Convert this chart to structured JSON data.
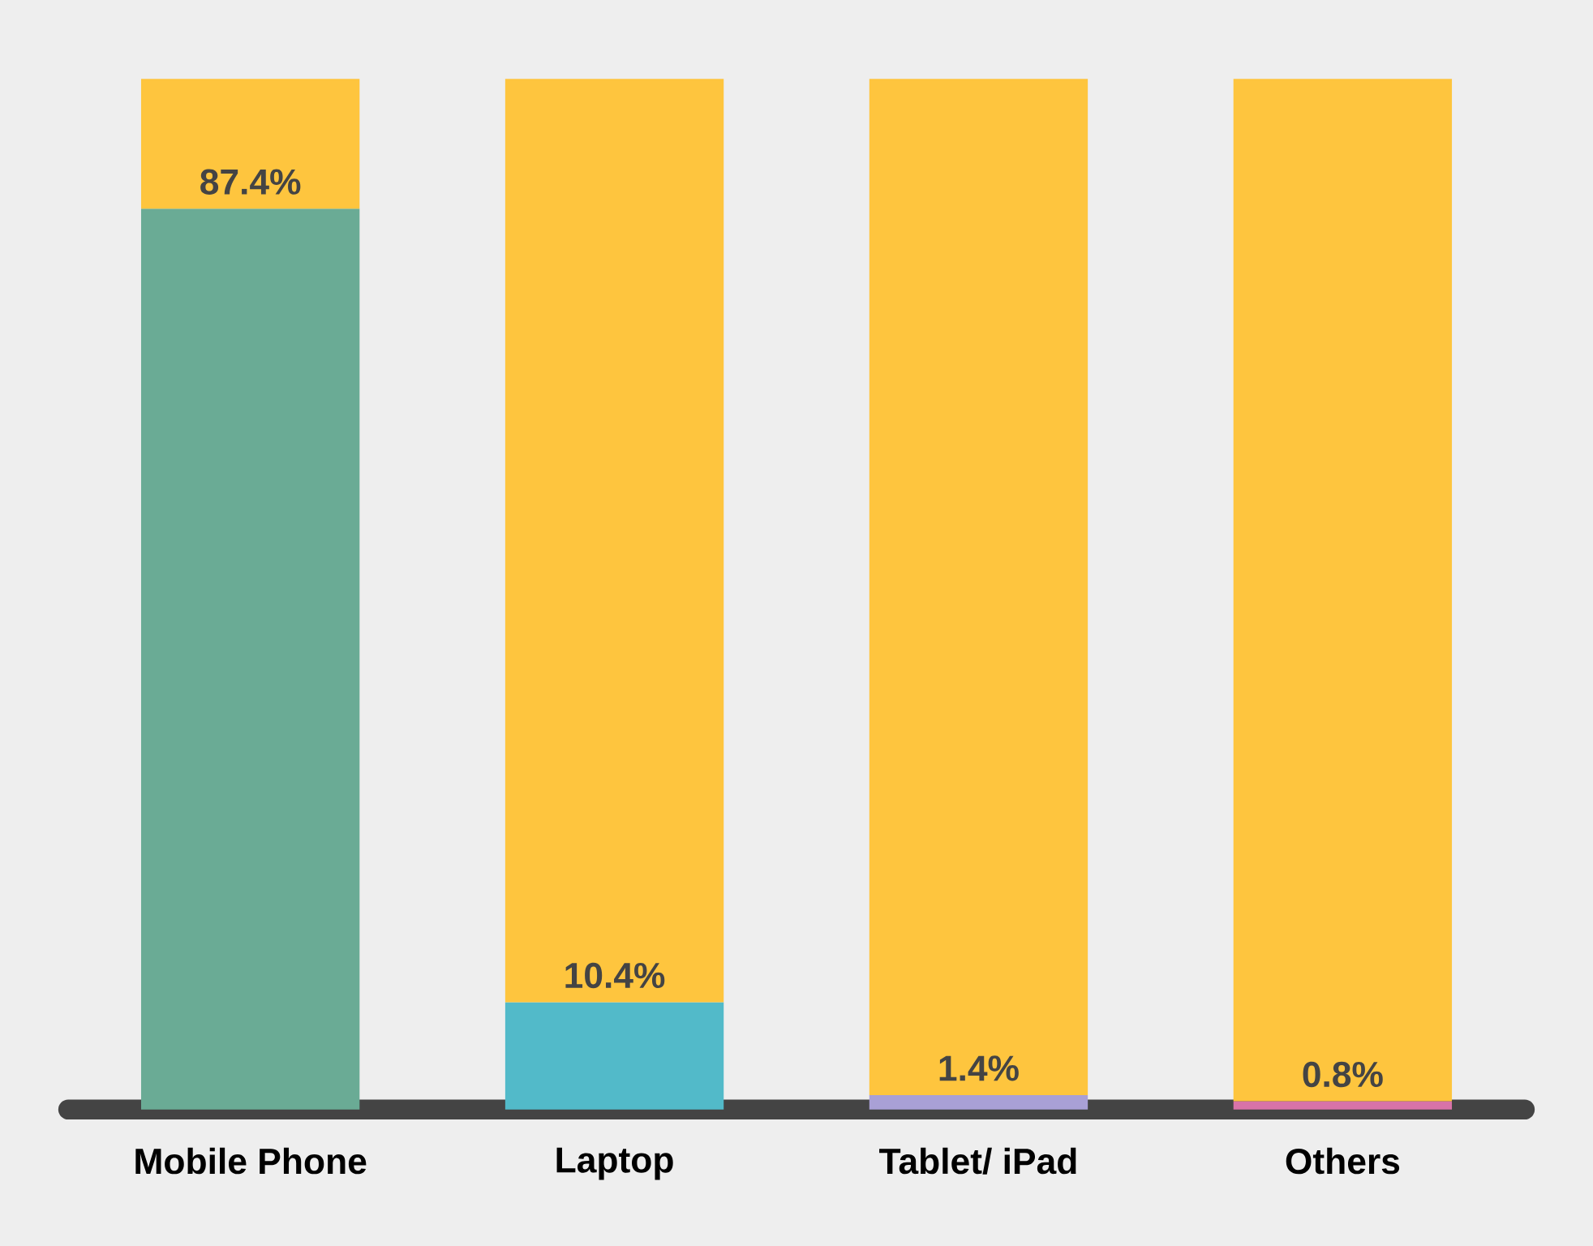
{
  "chart_data": {
    "type": "bar",
    "stacked": true,
    "categories": [
      "Mobile Phone",
      "Laptop",
      "Tablet/ iPad",
      "Others"
    ],
    "series": [
      {
        "colors": [
          "#6aab95",
          "#52bac9",
          "#a9a0d6",
          "#d873a8"
        ],
        "values": [
          87.4,
          10.4,
          1.4,
          0.8
        ],
        "value_labels": [
          "87.4%",
          "10.4%",
          "1.4%",
          "0.8%"
        ]
      },
      {
        "color": "#fec53e",
        "values": [
          12.6,
          89.6,
          98.6,
          99.2
        ]
      }
    ],
    "ylim": [
      0,
      100
    ],
    "tick_labels": "x"
  }
}
